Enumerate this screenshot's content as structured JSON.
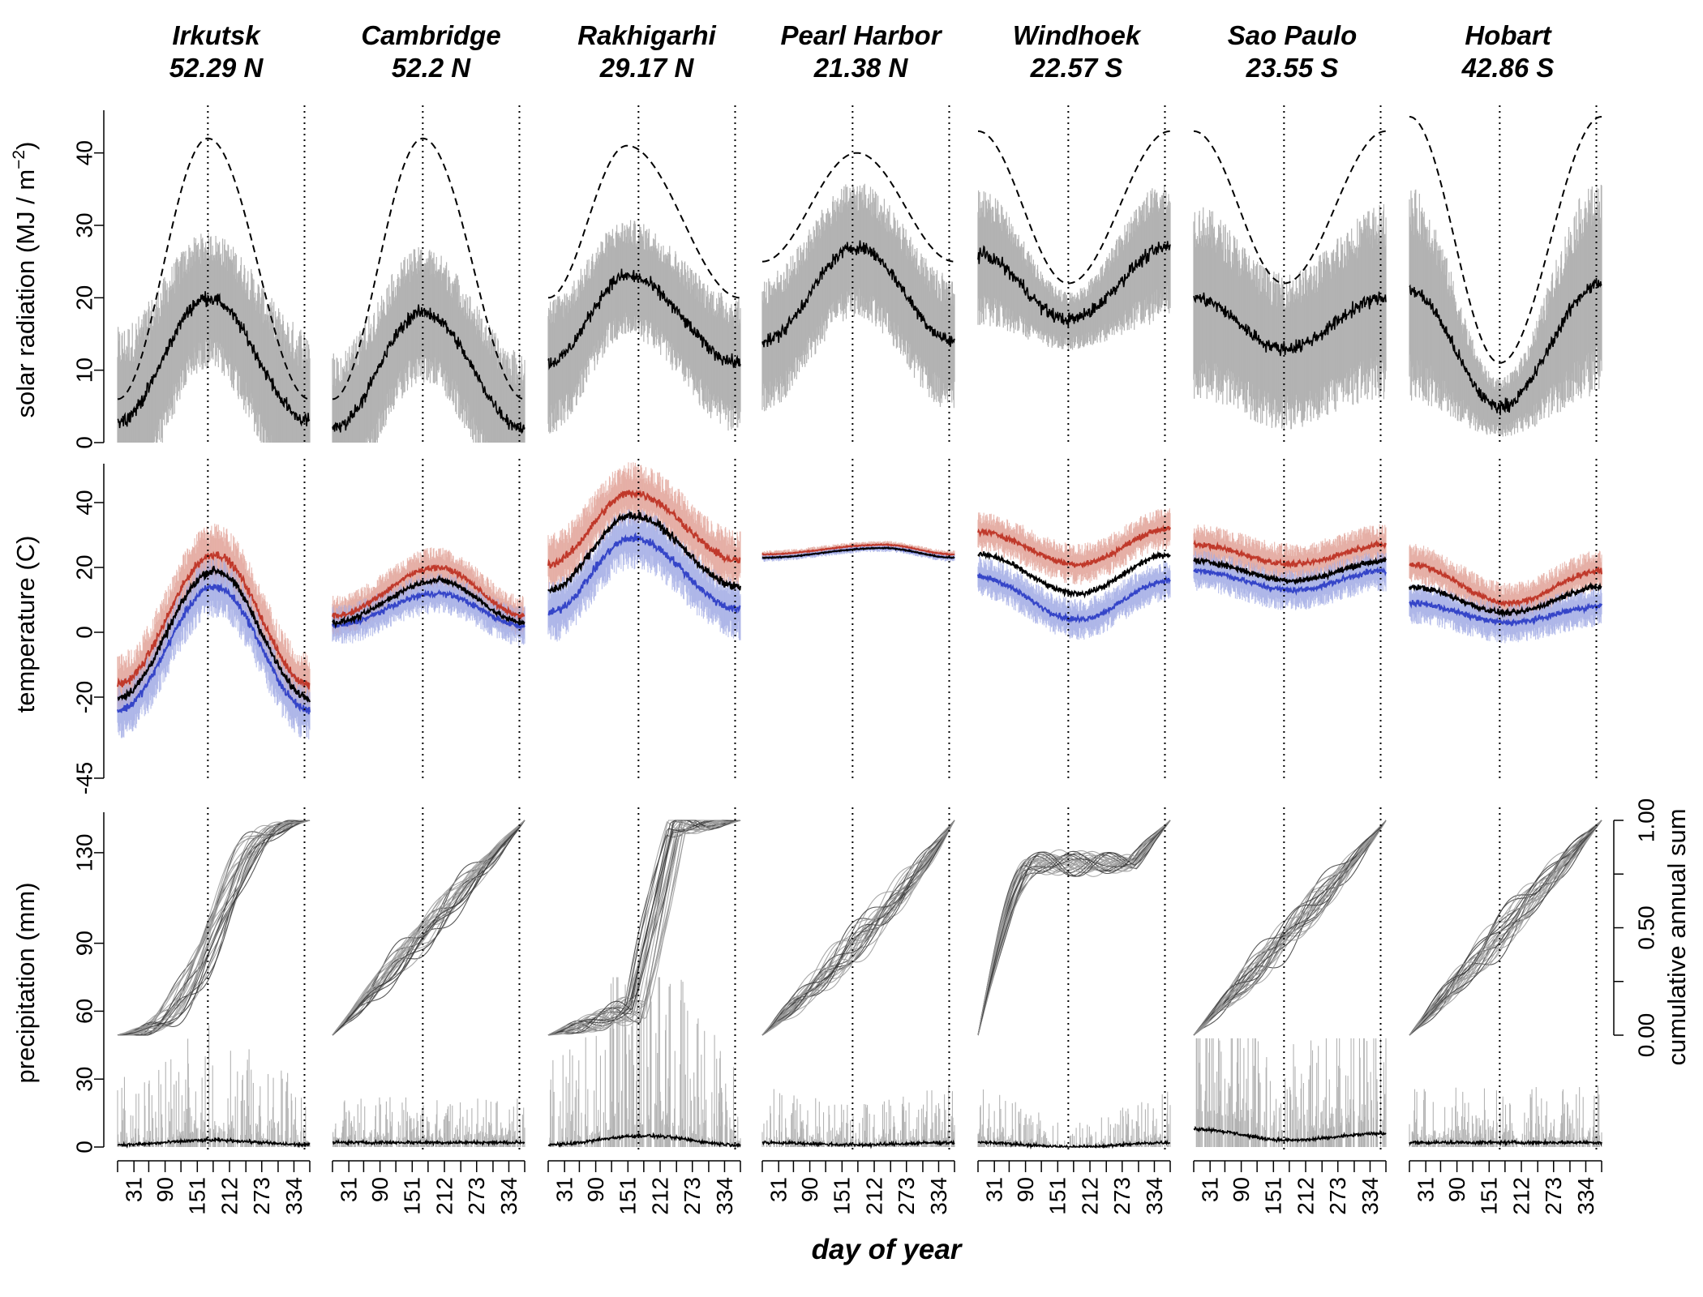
{
  "chart_data": {
    "type": "line",
    "panel_rows": [
      "solar radiation",
      "temperature",
      "precipitation"
    ],
    "stations": [
      {
        "name": "Irkutsk",
        "lat": "52.29 N"
      },
      {
        "name": "Cambridge",
        "lat": "52.2 N"
      },
      {
        "name": "Rakhigarhi",
        "lat": "29.17 N"
      },
      {
        "name": "Pearl Harbor",
        "lat": "21.38 N"
      },
      {
        "name": "Windhoek",
        "lat": "22.57 S"
      },
      {
        "name": "Sao Paulo",
        "lat": "23.55 S"
      },
      {
        "name": "Hobart",
        "lat": "42.86 S"
      }
    ],
    "y_axes": {
      "solar": {
        "label_main": "solar radiation (MJ / m",
        "label_sup": "−2",
        "label_end": ")",
        "ticks": [
          0,
          10,
          20,
          30,
          40
        ],
        "ylim": [
          0,
          45
        ]
      },
      "temperature": {
        "label": "temperature (C)",
        "ticks": [
          -45,
          -20,
          0,
          20,
          40
        ],
        "ylim": [
          -45,
          50
        ]
      },
      "precipitation": {
        "label": "precipitation (mm)",
        "ticks": [
          0,
          30,
          60,
          90,
          130
        ],
        "ylim": [
          0,
          145
        ]
      },
      "cumulative": {
        "label": "cumulative annual sum",
        "ticks": [
          "0.00",
          "0.50",
          "1.00"
        ]
      }
    },
    "x_axis": {
      "label": "day of year",
      "ticks": [
        31,
        90,
        151,
        212,
        273,
        334
      ],
      "xlim": [
        1,
        365
      ]
    },
    "reference_lines_doy": [
      172,
      355
    ],
    "series_colors": {
      "mean_line": "#000000",
      "daily_band": "#b3b3b3",
      "tmax": "#c0392b",
      "tmin": "#3545c8",
      "tmax_band": "#e3a79d",
      "tmin_band": "#a6afe6",
      "potential_solar": "#000000",
      "cumulative_lines": "#6e6e6e"
    },
    "solar": {
      "Irkutsk": {
        "mean": [
          3,
          20,
          3
        ],
        "peak_doy": 172,
        "band": [
          10,
          7
        ],
        "potential": [
          6,
          42,
          6
        ]
      },
      "Cambridge": {
        "mean": [
          2,
          18,
          2
        ],
        "peak_doy": 172,
        "band": [
          8,
          7
        ],
        "potential": [
          6,
          42,
          6
        ]
      },
      "Rakhigarhi": {
        "mean": [
          11,
          23,
          11
        ],
        "peak_doy": 150,
        "band": [
          7,
          6
        ],
        "potential": [
          20,
          41,
          20
        ]
      },
      "Pearl Harbor": {
        "mean": [
          14,
          27,
          14
        ],
        "peak_doy": 180,
        "band": [
          7,
          7
        ],
        "potential": [
          25,
          40,
          25
        ]
      },
      "Windhoek": {
        "mean": [
          26,
          17,
          27
        ],
        "peak_doy": 172,
        "band": [
          7,
          3
        ],
        "potential": [
          43,
          22,
          43
        ]
      },
      "Sao Paulo": {
        "mean": [
          20,
          13,
          20
        ],
        "peak_doy": 172,
        "band": [
          10,
          8
        ],
        "potential": [
          43,
          22,
          43
        ]
      },
      "Hobart": {
        "mean": [
          21,
          5,
          22
        ],
        "peak_doy": 172,
        "band": [
          11,
          3
        ],
        "potential": [
          45,
          11,
          45
        ]
      }
    },
    "temperature": {
      "Irkutsk": {
        "tmax": [
          -16,
          24,
          -16
        ],
        "tmean": [
          -20,
          19,
          -20
        ],
        "tmin": [
          -24,
          14,
          -24
        ],
        "peak_doy": 185
      },
      "Cambridge": {
        "tmax": [
          5,
          20,
          5
        ],
        "tmean": [
          3,
          16,
          3
        ],
        "tmin": [
          2,
          12,
          2
        ],
        "peak_doy": 200
      },
      "Rakhigarhi": {
        "tmax": [
          21,
          43,
          22
        ],
        "tmean": [
          13,
          36,
          14
        ],
        "tmin": [
          6,
          29,
          7
        ],
        "peak_doy": 160
      },
      "Pearl Harbor": {
        "tmax": [
          24,
          27,
          24
        ],
        "tmean": [
          23,
          26,
          23
        ],
        "tmin": [
          23,
          26,
          23
        ],
        "peak_doy": 230
      },
      "Windhoek": {
        "tmax": [
          31,
          21,
          32
        ],
        "tmean": [
          24,
          12,
          24
        ],
        "tmin": [
          17,
          4,
          16
        ],
        "peak_doy": 190
      },
      "Sao Paulo": {
        "tmax": [
          27,
          21,
          27
        ],
        "tmean": [
          22,
          16,
          22
        ],
        "tmin": [
          19,
          13,
          19
        ],
        "peak_doy": 190
      },
      "Hobart": {
        "tmax": [
          21,
          9,
          19
        ],
        "tmean": [
          14,
          6,
          14
        ],
        "tmin": [
          9,
          3,
          8
        ],
        "peak_doy": 190
      }
    },
    "precipitation": {
      "Irkutsk": {
        "daily_mean": [
          1,
          3,
          1
        ],
        "max_spike": 57,
        "cumulative_shape": "summer"
      },
      "Cambridge": {
        "daily_mean": [
          2,
          2,
          2
        ],
        "max_spike": 27,
        "cumulative_shape": "linear"
      },
      "Rakhigarhi": {
        "daily_mean": [
          1,
          5,
          1
        ],
        "max_spike": 75,
        "cumulative_shape": "monsoon"
      },
      "Pearl Harbor": {
        "daily_mean": [
          2,
          1,
          2
        ],
        "max_spike": 35,
        "cumulative_shape": "winter"
      },
      "Windhoek": {
        "daily_mean": [
          2,
          0,
          2
        ],
        "max_spike": 32,
        "cumulative_shape": "summer-south"
      },
      "Sao Paulo": {
        "daily_mean": [
          8,
          3,
          6
        ],
        "max_spike": 48,
        "cumulative_shape": "summer-south-mild"
      },
      "Hobart": {
        "daily_mean": [
          2,
          2,
          2
        ],
        "max_spike": 35,
        "cumulative_shape": "linear"
      }
    }
  }
}
